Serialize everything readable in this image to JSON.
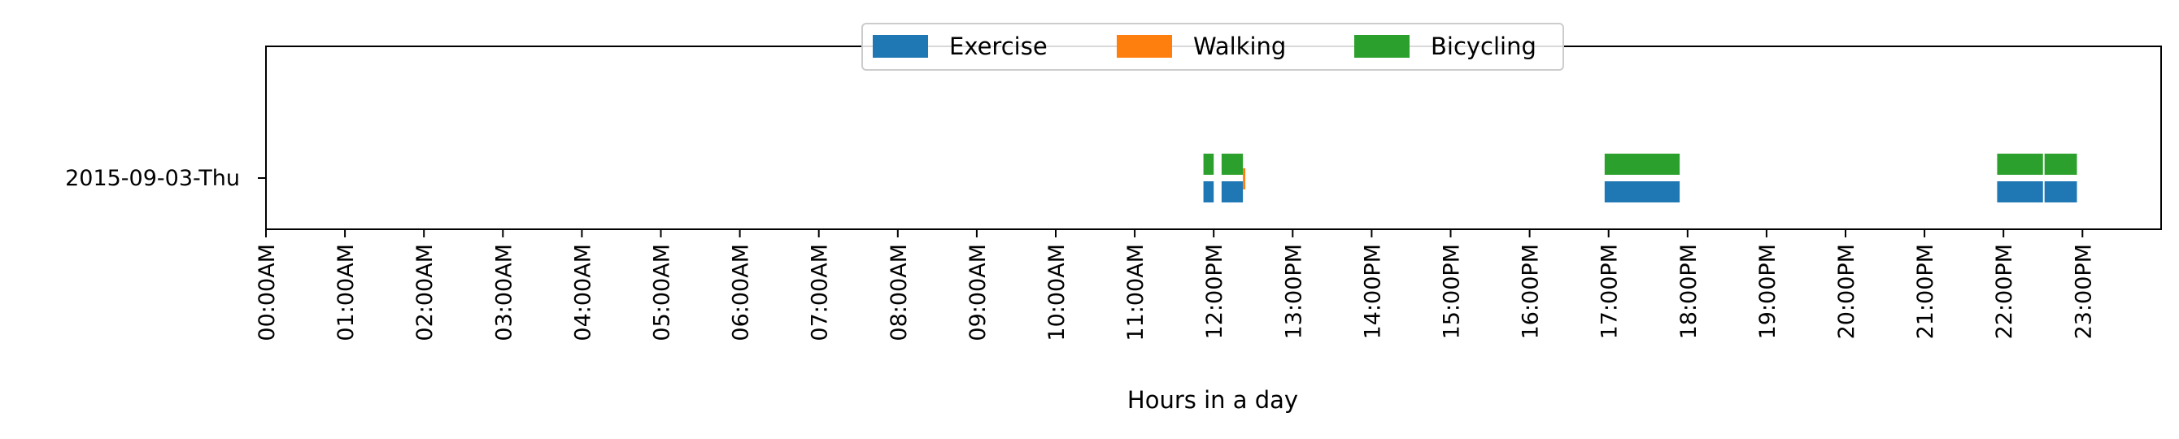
{
  "chart_data": {
    "type": "timeline",
    "title": "",
    "xlabel": "Hours in a day",
    "ylabel": "",
    "xlim": [
      0,
      24
    ],
    "x_ticks": [
      "00:00AM",
      "01:00AM",
      "02:00AM",
      "03:00AM",
      "04:00AM",
      "05:00AM",
      "06:00AM",
      "07:00AM",
      "08:00AM",
      "09:00AM",
      "10:00AM",
      "11:00AM",
      "12:00PM",
      "13:00PM",
      "14:00PM",
      "15:00PM",
      "16:00PM",
      "17:00PM",
      "18:00PM",
      "19:00PM",
      "20:00PM",
      "21:00PM",
      "22:00PM",
      "23:00PM"
    ],
    "categories": [
      "2015-09-03-Thu"
    ],
    "legend_position": "top-center",
    "grid": false,
    "series": [
      {
        "name": "Exercise",
        "color": "#1f77b4",
        "intervals": [
          [
            11.87,
            12.0
          ],
          [
            12.1,
            12.37
          ],
          [
            16.95,
            17.9
          ],
          [
            21.92,
            22.5
          ],
          [
            22.52,
            22.93
          ]
        ]
      },
      {
        "name": "Walking",
        "color": "#ff7f0e",
        "intervals": [
          [
            12.37,
            12.4
          ]
        ]
      },
      {
        "name": "Bicycling",
        "color": "#2ca02c",
        "intervals": [
          [
            11.87,
            12.0
          ],
          [
            12.1,
            12.37
          ],
          [
            16.95,
            17.9
          ],
          [
            21.92,
            22.5
          ],
          [
            22.52,
            22.93
          ]
        ]
      }
    ]
  }
}
